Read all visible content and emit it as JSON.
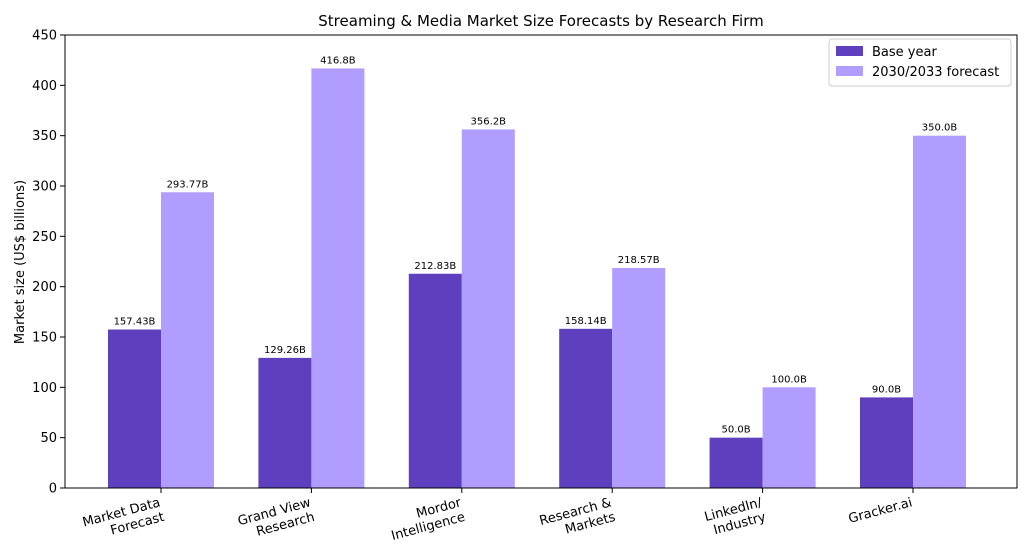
{
  "chart_data": {
    "type": "bar",
    "title": "Streaming & Media Market Size Forecasts by Research Firm",
    "xlabel": "",
    "ylabel": "Market size (US$ billions)",
    "ylim": [
      0,
      450
    ],
    "yticks": [
      0,
      50,
      100,
      150,
      200,
      250,
      300,
      350,
      400,
      450
    ],
    "categories": [
      [
        "Market Data",
        "Forecast"
      ],
      [
        "Grand View",
        "Research"
      ],
      [
        "Mordor",
        "Intelligence"
      ],
      [
        "Research &",
        "Markets"
      ],
      [
        "LinkedIn/",
        "Industry"
      ],
      [
        "Gracker.ai"
      ]
    ],
    "series": [
      {
        "name": "Base year",
        "color": "#5e3fbe",
        "values": [
          157.43,
          129.26,
          212.83,
          158.14,
          50.0,
          90.0
        ],
        "labels": [
          "157.43B",
          "129.26B",
          "212.83B",
          "158.14B",
          "50.0B",
          "90.0B"
        ]
      },
      {
        "name": "2030/2033 forecast",
        "color": "#b19cff",
        "values": [
          293.77,
          416.8,
          356.2,
          218.57,
          100.0,
          350.0
        ],
        "labels": [
          "293.77B",
          "416.8B",
          "356.2B",
          "218.57B",
          "100.0B",
          "350.0B"
        ]
      }
    ],
    "legend": "top-right",
    "grid": false
  }
}
